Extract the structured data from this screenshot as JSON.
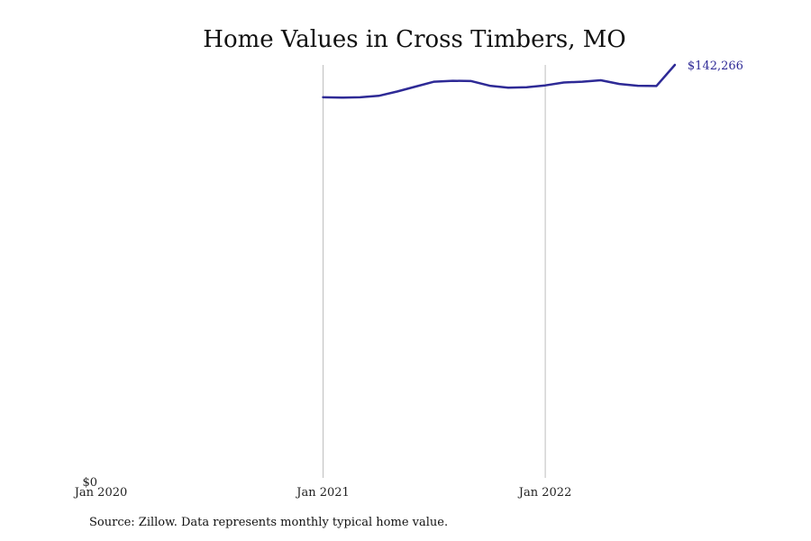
{
  "chart_data": {
    "type": "line",
    "title": "Home Values in Cross Timbers, MO",
    "xlabel": "",
    "ylabel": "",
    "x_ticks": [
      "Jan 2020",
      "Jan 2021",
      "Jan 2022"
    ],
    "y_ticks": [
      "$0"
    ],
    "ylim": [
      0,
      142266
    ],
    "xlim": [
      "2020-01",
      "2022-10"
    ],
    "grid": "vertical lines at Jan 2021 and Jan 2022",
    "series": [
      {
        "color": "#2e2a96",
        "points": [
          {
            "x": "2021-01",
            "y": 131100
          },
          {
            "x": "2021-02",
            "y": 131000
          },
          {
            "x": "2021-03",
            "y": 131100
          },
          {
            "x": "2021-04",
            "y": 131600
          },
          {
            "x": "2021-05",
            "y": 133100
          },
          {
            "x": "2021-06",
            "y": 134800
          },
          {
            "x": "2021-07",
            "y": 136500
          },
          {
            "x": "2021-08",
            "y": 136800
          },
          {
            "x": "2021-09",
            "y": 136700
          },
          {
            "x": "2021-10",
            "y": 135100
          },
          {
            "x": "2021-11",
            "y": 134400
          },
          {
            "x": "2021-12",
            "y": 134600
          },
          {
            "x": "2022-01",
            "y": 135200
          },
          {
            "x": "2022-02",
            "y": 136200
          },
          {
            "x": "2022-03",
            "y": 136500
          },
          {
            "x": "2022-04",
            "y": 137000
          },
          {
            "x": "2022-05",
            "y": 135700
          },
          {
            "x": "2022-06",
            "y": 135100
          },
          {
            "x": "2022-07",
            "y": 135000
          },
          {
            "x": "2022-08",
            "y": 142266
          }
        ]
      }
    ],
    "end_label": "$142,266",
    "source": "Source: Zillow. Data represents monthly typical home value."
  }
}
